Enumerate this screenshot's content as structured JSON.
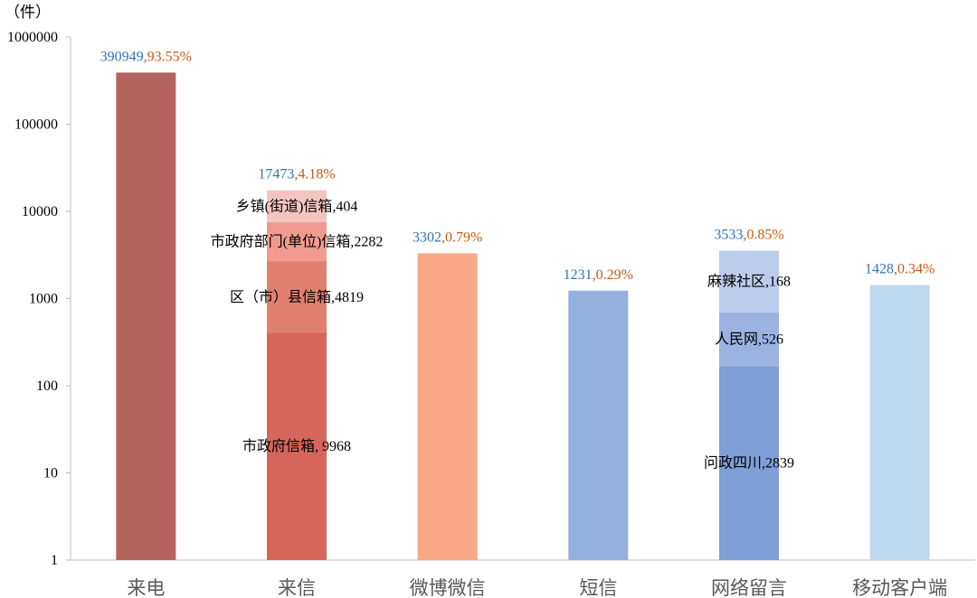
{
  "chart_data": {
    "type": "bar",
    "yscale": "log",
    "ylabel": "（件）",
    "ylim": [
      1,
      1000000
    ],
    "yticks": [
      "1000000",
      "100000",
      "10000",
      "1000",
      "100",
      "10",
      "1"
    ],
    "grid": false,
    "categories": [
      "来电",
      "来信",
      "微博微信",
      "短信",
      "网络留言",
      "移动客户端"
    ],
    "label_separator": ",",
    "colors": {
      "value_label": "#2e75b6",
      "percent_label": "#c55a11",
      "segment_label": "#000000",
      "category_label": "#595959",
      "axis": "#bfbfbf"
    },
    "bars": [
      {
        "value": 390949,
        "percent": "93.55%",
        "color": "#b4645e"
      },
      {
        "value": 17473,
        "percent": "4.18%",
        "segments": [
          {
            "label": "市政府信箱, 9968",
            "value": 9968,
            "color": "#d6665a"
          },
          {
            "label": "区（市）县信箱,4819",
            "value": 4819,
            "color": "#e0806f"
          },
          {
            "label": "市政府部门(单位)信箱,2282",
            "value": 2282,
            "color": "#f19b90"
          },
          {
            "label": "乡镇(街道)信箱,404",
            "value": 404,
            "color": "#f3c5bf"
          }
        ]
      },
      {
        "value": 3302,
        "percent": "0.79%",
        "color": "#f8a886"
      },
      {
        "value": 1231,
        "percent": "0.29%",
        "color": "#95afdf"
      },
      {
        "value": 3533,
        "percent": "0.85%",
        "segments": [
          {
            "label": "问政四川,2839",
            "value": 2839,
            "color": "#7f9fd7"
          },
          {
            "label": "人民网,526",
            "value": 526,
            "color": "#9bb3e1"
          },
          {
            "label": "麻辣社区,168",
            "value": 168,
            "color": "#bdcbec"
          }
        ]
      },
      {
        "value": 1428,
        "percent": "0.34%",
        "color": "#bdd7ee"
      }
    ]
  }
}
